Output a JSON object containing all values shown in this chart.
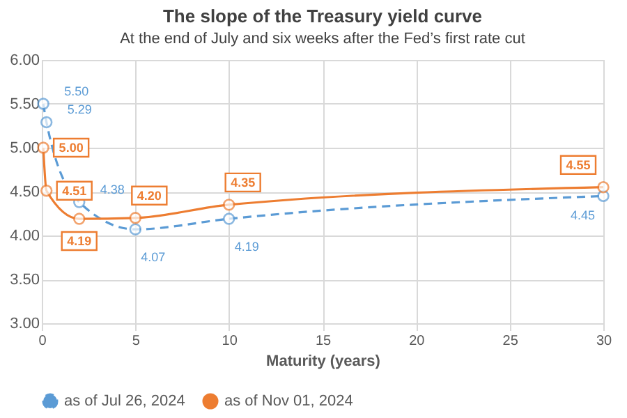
{
  "chart_data": {
    "type": "line",
    "title": "The slope of the Treasury yield curve",
    "subtitle": "At the end of July and six weeks after the Fed’s first rate cut",
    "xlabel": "Maturity (years)",
    "series": [
      {
        "name": "as of Jul 26, 2024",
        "color": "#5b9bd5",
        "line_style": "dashed",
        "x": [
          0.08,
          0.25,
          2,
          5,
          10,
          30
        ],
        "values": [
          5.5,
          5.29,
          4.38,
          4.07,
          4.19,
          4.45
        ],
        "value_labels": [
          "5.50",
          "5.29",
          "4.38",
          "4.07",
          "4.19",
          "4.45"
        ]
      },
      {
        "name": "as of Nov 01, 2024",
        "color": "#ed7d31",
        "line_style": "solid",
        "x": [
          0.08,
          0.25,
          2,
          5,
          10,
          30
        ],
        "values": [
          5.0,
          4.51,
          4.19,
          4.2,
          4.35,
          4.55
        ],
        "value_labels": [
          "5.00",
          "4.51",
          "4.19",
          "4.20",
          "4.35",
          "4.55"
        ]
      }
    ],
    "xlim": [
      0,
      30
    ],
    "xticks": [
      0,
      5,
      10,
      15,
      20,
      25,
      30
    ],
    "ylim": [
      3,
      6
    ],
    "yticks": [
      {
        "value": 3,
        "label": "3.00"
      },
      {
        "value": 3.5,
        "label": "3.50"
      },
      {
        "value": 4,
        "label": "4.00"
      },
      {
        "value": 4.5,
        "label": "4.50"
      },
      {
        "value": 5,
        "label": "5.00"
      },
      {
        "value": 5.5,
        "label": "5.50"
      },
      {
        "value": 6,
        "label": "6.00"
      }
    ],
    "grid": true,
    "legend": "bottom",
    "marker": "circle"
  }
}
